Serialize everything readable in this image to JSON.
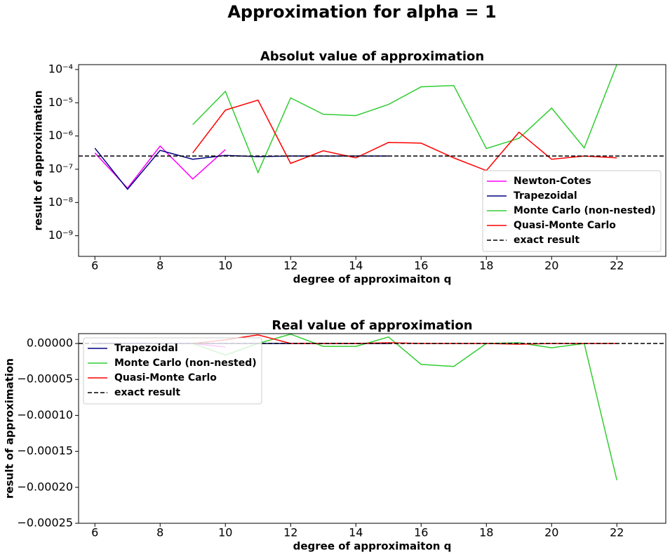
{
  "title": "Approximation for alpha = 1",
  "chart_data": [
    {
      "type": "line",
      "title": "Absolut value of approximation",
      "x_label": "degree of approximaiton q",
      "y_label": "result of approximation",
      "x": [
        6,
        7,
        8,
        9,
        10,
        11,
        12,
        13,
        14,
        15,
        16,
        17,
        18,
        19,
        20,
        21,
        22
      ],
      "series": [
        {
          "name": "Newton-Cotes",
          "color": "#ff00ff",
          "values": [
            3.1e-07,
            2.7e-08,
            5e-07,
            5.1e-08,
            3.9e-07,
            null,
            null,
            null,
            null,
            null,
            null,
            null,
            null,
            null,
            null,
            null,
            null
          ]
        },
        {
          "name": "Trapezoidal",
          "color": "#000080",
          "values": [
            4.3e-07,
            2.5e-08,
            3.7e-07,
            2e-07,
            2.6e-07,
            2.4e-07,
            2.5e-07,
            2.5e-07,
            2.5e-07,
            2.5e-07,
            null,
            null,
            null,
            null,
            null,
            null,
            null
          ]
        },
        {
          "name": "Monte Carlo (non-nested)",
          "color": "#32cd32",
          "values": [
            null,
            null,
            null,
            2.2e-06,
            2.2e-05,
            8e-08,
            1.4e-05,
            4.5e-06,
            4.1e-06,
            8.9e-06,
            3e-05,
            3.3e-05,
            4.2e-07,
            8.5e-07,
            6.9e-06,
            4.4e-07,
            0.00014
          ]
        },
        {
          "name": "Quasi-Monte Carlo",
          "color": "#ff0000",
          "values": [
            null,
            null,
            null,
            3.1e-07,
            6e-06,
            1.2e-05,
            1.5e-07,
            3.6e-07,
            2.2e-07,
            6.4e-07,
            6.1e-07,
            2.2e-07,
            9.1e-08,
            1.3e-06,
            2e-07,
            2.5e-07,
            2.2e-07
          ]
        }
      ],
      "exact": {
        "name": "exact result",
        "value": 2.5e-07,
        "color": "#000000"
      },
      "log_y": true,
      "legend": "lower right",
      "xlim": [
        5.5,
        23.5
      ],
      "xticks": [
        6,
        8,
        10,
        12,
        14,
        16,
        18,
        20,
        22
      ],
      "ylim": [
        2.4e-10,
        0.00014
      ],
      "yticks": [
        {
          "value": 1e-09,
          "label": "10⁻⁹"
        },
        {
          "value": 1e-08,
          "label": "10⁻⁸"
        },
        {
          "value": 1e-07,
          "label": "10⁻⁷"
        },
        {
          "value": 1e-06,
          "label": "10⁻⁶"
        },
        {
          "value": 1e-05,
          "label": "10⁻⁵"
        },
        {
          "value": 0.0001,
          "label": "10⁻⁴"
        }
      ]
    },
    {
      "type": "line",
      "title": "Real value of approximation",
      "x_label": "degree of approximaiton q",
      "y_label": "result of approximation",
      "x": [
        6,
        7,
        8,
        9,
        10,
        11,
        12,
        13,
        14,
        15,
        16,
        17,
        18,
        19,
        20,
        21,
        22
      ],
      "series": [
        {
          "color": "#ff00ff",
          "values": [
            0,
            0,
            0,
            0,
            -5e-06,
            null,
            null,
            null,
            null,
            null,
            null,
            null,
            null,
            null,
            null,
            null,
            null
          ]
        },
        {
          "name": "Trapezoidal",
          "color": "#000080",
          "values": [
            0,
            0,
            0,
            0,
            0,
            0,
            0,
            0,
            0,
            0,
            null,
            null,
            null,
            null,
            null,
            null,
            null
          ]
        },
        {
          "name": "Monte Carlo (non-nested)",
          "color": "#32cd32",
          "values": [
            null,
            null,
            null,
            0,
            -1.6e-05,
            0,
            1.3e-05,
            -4e-06,
            -4e-06,
            9e-06,
            -2.9e-05,
            -3.2e-05,
            0,
            1e-06,
            -6e-06,
            0,
            -0.00019
          ]
        },
        {
          "name": "Quasi-Monte Carlo",
          "color": "#ff0000",
          "values": [
            null,
            null,
            null,
            0,
            5e-06,
            1.2e-05,
            0,
            0,
            0,
            1e-06,
            0,
            0,
            0,
            -1e-06,
            0,
            0,
            0
          ]
        }
      ],
      "exact": {
        "name": "exact result",
        "value": 0,
        "color": "#000000"
      },
      "log_y": false,
      "legend": "upper left",
      "xlim": [
        5.5,
        23.5
      ],
      "xticks": [
        6,
        8,
        10,
        12,
        14,
        16,
        18,
        20,
        22
      ],
      "ylim": [
        -0.00025,
        1.37e-05
      ],
      "yticks": [
        {
          "value": -0.00025,
          "label": "−0.00025"
        },
        {
          "value": -0.0002,
          "label": "−0.00020"
        },
        {
          "value": -0.00015,
          "label": "−0.00015"
        },
        {
          "value": -0.0001,
          "label": "−0.00010"
        },
        {
          "value": -5e-05,
          "label": "−0.00005"
        },
        {
          "value": 0,
          "label": "0.00000"
        }
      ]
    }
  ]
}
